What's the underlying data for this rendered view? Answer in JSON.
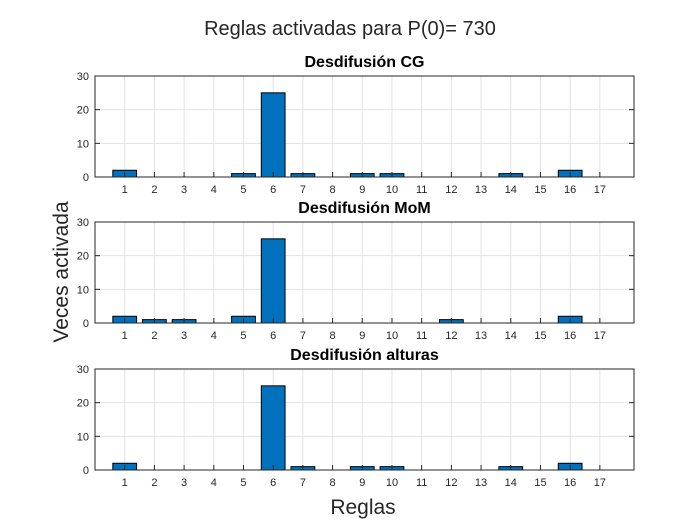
{
  "figure": {
    "title": "Reglas activadas para P(0)= 730",
    "xlabel": "Reglas",
    "ylabel": "Veces activada"
  },
  "chart_data": [
    {
      "type": "bar",
      "title": "Desdifusión CG",
      "categories": [
        "1",
        "2",
        "3",
        "4",
        "5",
        "6",
        "7",
        "8",
        "9",
        "10",
        "11",
        "12",
        "13",
        "14",
        "15",
        "16",
        "17"
      ],
      "values": [
        2,
        0,
        0,
        0,
        1,
        25,
        1,
        0,
        1,
        1,
        0,
        0,
        0,
        1,
        0,
        2,
        0
      ],
      "ylim": [
        0,
        30
      ],
      "yticks": [
        0,
        10,
        20,
        30
      ],
      "grid": true,
      "bar_color": "#0072bd"
    },
    {
      "type": "bar",
      "title": "Desdifusión MoM",
      "categories": [
        "1",
        "2",
        "3",
        "4",
        "5",
        "6",
        "7",
        "8",
        "9",
        "10",
        "11",
        "12",
        "13",
        "14",
        "15",
        "16",
        "17"
      ],
      "values": [
        2,
        1,
        1,
        0,
        2,
        25,
        0,
        0,
        0,
        0,
        0,
        1,
        0,
        0,
        0,
        2,
        0
      ],
      "ylim": [
        0,
        30
      ],
      "yticks": [
        0,
        10,
        20,
        30
      ],
      "grid": true,
      "bar_color": "#0072bd"
    },
    {
      "type": "bar",
      "title": "Desdifusión alturas",
      "categories": [
        "1",
        "2",
        "3",
        "4",
        "5",
        "6",
        "7",
        "8",
        "9",
        "10",
        "11",
        "12",
        "13",
        "14",
        "15",
        "16",
        "17"
      ],
      "values": [
        2,
        0,
        0,
        0,
        0,
        25,
        1,
        0,
        1,
        1,
        0,
        0,
        0,
        1,
        0,
        2,
        0
      ],
      "ylim": [
        0,
        30
      ],
      "yticks": [
        0,
        10,
        20,
        30
      ],
      "grid": true,
      "bar_color": "#0072bd"
    }
  ]
}
